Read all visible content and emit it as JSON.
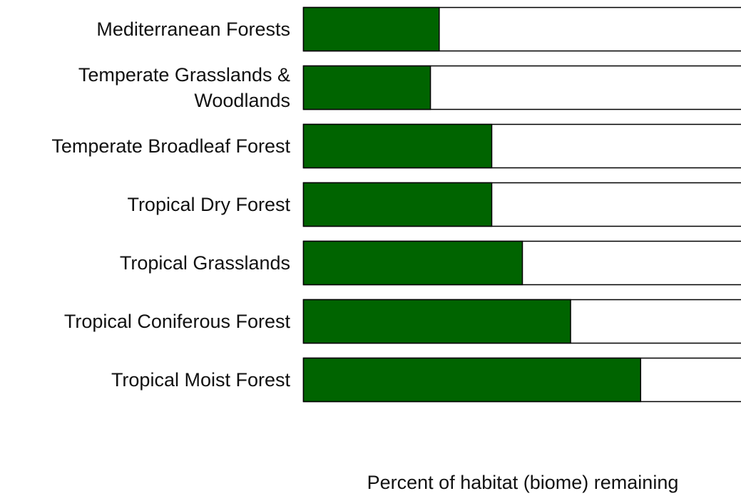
{
  "chart_data": {
    "type": "bar",
    "orientation": "horizontal",
    "x_label": "Percent of habitat (biome) remaining",
    "categories": [
      "Mediterranean Forests",
      "Temperate Grasslands & Woodlands",
      "Temperate Broadleaf Forest",
      "Tropical Dry Forest",
      "Tropical Grasslands",
      "Tropical Coniferous Forest",
      "Tropical Moist Forest"
    ],
    "values": [
      31,
      29,
      43,
      43,
      50,
      61,
      77
    ],
    "color": "#006400",
    "xlim": [
      0,
      100
    ]
  }
}
